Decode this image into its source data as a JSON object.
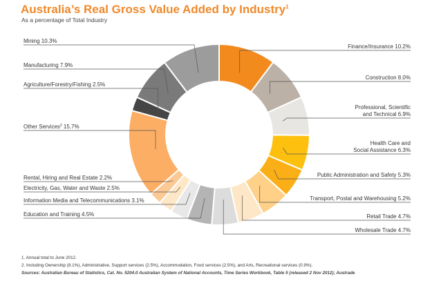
{
  "header": {
    "title": "Australia’s Real Gross Value Added by Industry",
    "title_footnote": "1",
    "subtitle": "As a percentage of Total Industry"
  },
  "chart_data": {
    "type": "pie",
    "variant": "donut",
    "unit": "%",
    "start_clockwise_from_top": true,
    "slices": [
      {
        "label": "Finance/Insurance",
        "value_label": "10.2%",
        "value": 10.2,
        "color": "#f28a1e",
        "side": "right"
      },
      {
        "label": "Construction",
        "value_label": "8.0%",
        "value": 8.0,
        "color": "#bcb1a6",
        "side": "right"
      },
      {
        "label": "Professional, Scientific|and Technical",
        "value_label": "6.9%",
        "value": 6.9,
        "color": "#e8e6e3",
        "side": "right"
      },
      {
        "label": "Health Care and|Social Assistance",
        "value_label": "6.3%",
        "value": 6.3,
        "color": "#fec00f",
        "side": "right"
      },
      {
        "label": "Public Administration and Safety",
        "value_label": "5.3%",
        "value": 5.3,
        "color": "#fbaf17",
        "side": "right"
      },
      {
        "label": "Transport, Postal and Warehousing",
        "value_label": "5.2%",
        "value": 5.2,
        "color": "#fed088",
        "side": "right"
      },
      {
        "label": "Retail Trade",
        "value_label": "4.7%",
        "value": 4.7,
        "color": "#fde7c6",
        "side": "right"
      },
      {
        "label": "Wholesale Trade",
        "value_label": "4.7%",
        "value": 4.7,
        "color": "#dcdcdc",
        "side": "right"
      },
      {
        "label": "Education and Training",
        "value_label": "4.5%",
        "value": 4.5,
        "color": "#b4b4b4",
        "side": "left"
      },
      {
        "label": "Information Media and Telecommunications",
        "value_label": "3.1%",
        "value": 3.1,
        "color": "#e8e8e8",
        "side": "left"
      },
      {
        "label": "Electricity, Gas, Water and Waste",
        "value_label": "2.5%",
        "value": 2.5,
        "color": "#fde7c6",
        "side": "left"
      },
      {
        "label": "Rental, Hiring and Real Estate",
        "value_label": "2.2%",
        "value": 2.2,
        "color": "#fcc894",
        "side": "left"
      },
      {
        "label": "Other Services",
        "label_footnote": "2",
        "value_label": "15.7%",
        "value": 15.7,
        "color": "#fbae64",
        "side": "left"
      },
      {
        "label": "Agriculture/Forestry/Fishing",
        "value_label": "2.5%",
        "value": 2.5,
        "color": "#454545",
        "side": "left"
      },
      {
        "label": "Manufacturing",
        "value_label": "7.9%",
        "value": 7.9,
        "color": "#7a7a7a",
        "side": "left"
      },
      {
        "label": "Mining",
        "value_label": "10.3%",
        "value": 10.3,
        "color": "#9c9c9c",
        "side": "left"
      }
    ]
  },
  "footnotes": {
    "note1": "1. Annual total to June 2012.",
    "note2": "2. Including Ownership (8.1%), Administrative, Support services (2.5%), Accommodation, Food services (2.5%), and Arts, Recreational services (0.9%).",
    "source": "Sources: Australian Bureau of Statistics, Cat. No. 5204.0 Australian System of National Accounts, Time Series Workbook, Table 5 (released 2 Nov 2012); Austrade"
  }
}
